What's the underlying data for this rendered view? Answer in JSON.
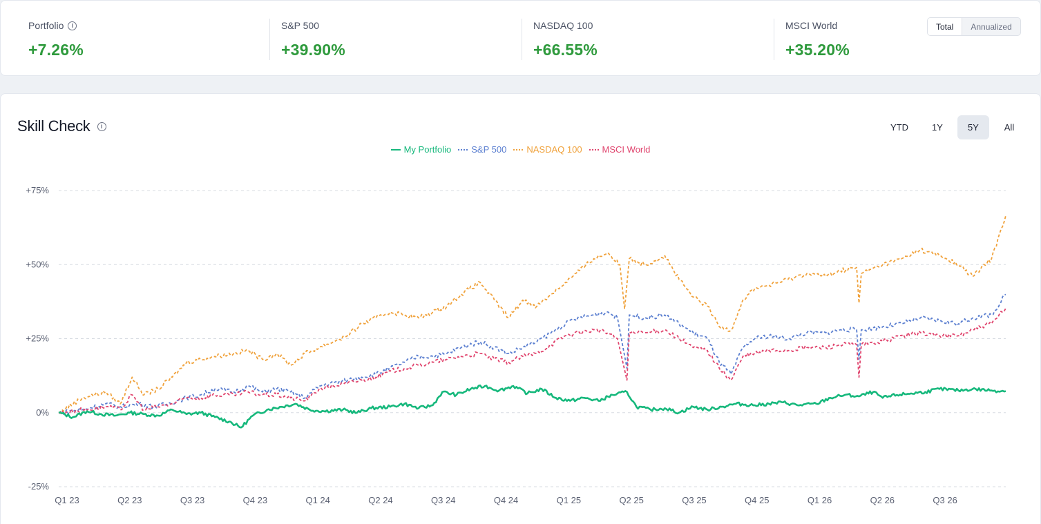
{
  "stats": [
    {
      "label": "Portfolio",
      "value": "+7.26%",
      "has_info": true
    },
    {
      "label": "S&P 500",
      "value": "+39.90%",
      "has_info": false
    },
    {
      "label": "NASDAQ 100",
      "value": "+66.55%",
      "has_info": false
    },
    {
      "label": "MSCI World",
      "value": "+35.20%",
      "has_info": false
    }
  ],
  "mode_toggle": {
    "options": [
      "Total",
      "Annualized"
    ],
    "selected": "Total"
  },
  "chart_card": {
    "title": "Skill Check",
    "ranges": [
      "YTD",
      "1Y",
      "5Y",
      "All"
    ],
    "selected_range": "5Y"
  },
  "chart_data": {
    "type": "line",
    "xlabel": "",
    "ylabel": "",
    "x_ticks": [
      "Q1 23",
      "Q2 23",
      "Q3 23",
      "Q4 23",
      "Q1 24",
      "Q2 24",
      "Q3 24",
      "Q4 24",
      "Q1 25",
      "Q2 25",
      "Q3 25",
      "Q4 25",
      "Q1 26",
      "Q2 26",
      "Q3 26"
    ],
    "y_ticks": [
      "+75%",
      "+50%",
      "+25%",
      "0%",
      "-25%"
    ],
    "y_tick_values": [
      75,
      50,
      25,
      0,
      -25
    ],
    "ylim": [
      -25,
      75
    ],
    "x_range_quarters": [
      0,
      15.1
    ],
    "grid": "horizontal dashed",
    "legend_position": "top-center",
    "series": [
      {
        "name": "My Portfolio",
        "color": "#16b87c",
        "style": "solid",
        "points": [
          [
            0,
            0
          ],
          [
            0.3,
            -1.5
          ],
          [
            0.6,
            0.5
          ],
          [
            0.9,
            -0.5
          ],
          [
            1.2,
            -1
          ],
          [
            1.5,
            0
          ],
          [
            1.8,
            -0.5
          ],
          [
            2.1,
            -1
          ],
          [
            2.4,
            1
          ],
          [
            2.7,
            -0.5
          ],
          [
            3.0,
            0
          ],
          [
            3.3,
            -1.5
          ],
          [
            3.6,
            -3
          ],
          [
            3.85,
            -5
          ],
          [
            4.1,
            -1
          ],
          [
            4.4,
            1
          ],
          [
            4.7,
            2
          ],
          [
            5.0,
            3
          ],
          [
            5.3,
            1
          ],
          [
            5.6,
            0.5
          ],
          [
            6.0,
            1
          ],
          [
            6.3,
            0
          ],
          [
            6.6,
            1.5
          ],
          [
            7.0,
            2
          ],
          [
            7.3,
            3
          ],
          [
            7.6,
            1.5
          ],
          [
            7.9,
            2.5
          ],
          [
            8.1,
            7
          ],
          [
            8.4,
            6
          ],
          [
            8.7,
            8
          ],
          [
            9.0,
            9
          ],
          [
            9.3,
            7.5
          ],
          [
            9.6,
            9
          ],
          [
            9.9,
            6.5
          ],
          [
            10.2,
            8
          ],
          [
            10.5,
            5
          ],
          [
            10.8,
            4
          ],
          [
            11.1,
            5
          ],
          [
            11.4,
            4
          ],
          [
            11.7,
            6
          ],
          [
            12.0,
            7
          ],
          [
            12.2,
            2
          ],
          [
            12.5,
            1
          ],
          [
            12.8,
            1.5
          ],
          [
            13.1,
            0
          ],
          [
            13.4,
            2
          ],
          [
            13.7,
            1
          ],
          [
            14.0,
            2
          ],
          [
            14.3,
            3
          ],
          [
            14.7,
            2.5
          ],
          [
            15.0,
            3
          ],
          [
            15.3,
            3.5
          ],
          [
            15.6,
            2.5
          ],
          [
            16.0,
            3
          ],
          [
            16.3,
            5
          ],
          [
            16.6,
            6
          ],
          [
            16.9,
            5.5
          ],
          [
            17.2,
            7
          ],
          [
            17.4,
            5
          ],
          [
            17.7,
            6
          ],
          [
            18.0,
            6.5
          ],
          [
            18.3,
            7
          ],
          [
            18.6,
            8
          ],
          [
            19.0,
            7.5
          ],
          [
            19.3,
            8
          ],
          [
            19.7,
            7.5
          ],
          [
            20.0,
            7.26
          ]
        ]
      },
      {
        "name": "S&P 500",
        "color": "#5b7fd0",
        "style": "dashed",
        "points": [
          [
            0,
            0
          ],
          [
            0.5,
            1
          ],
          [
            1.0,
            3
          ],
          [
            1.3,
            2
          ],
          [
            1.7,
            3
          ],
          [
            2.0,
            2
          ],
          [
            2.3,
            3
          ],
          [
            2.7,
            5
          ],
          [
            3.0,
            6
          ],
          [
            3.3,
            8
          ],
          [
            3.7,
            7
          ],
          [
            4.0,
            9
          ],
          [
            4.3,
            7
          ],
          [
            4.6,
            8
          ],
          [
            4.9,
            7
          ],
          [
            5.2,
            5
          ],
          [
            5.5,
            9
          ],
          [
            5.8,
            10
          ],
          [
            6.1,
            11
          ],
          [
            6.4,
            12
          ],
          [
            6.7,
            13
          ],
          [
            7.0,
            15
          ],
          [
            7.3,
            17
          ],
          [
            7.6,
            19
          ],
          [
            7.9,
            19
          ],
          [
            8.2,
            20
          ],
          [
            8.5,
            22
          ],
          [
            8.9,
            24
          ],
          [
            9.2,
            22
          ],
          [
            9.5,
            20
          ],
          [
            9.8,
            22
          ],
          [
            10.1,
            24
          ],
          [
            10.4,
            27
          ],
          [
            10.7,
            30
          ],
          [
            11.0,
            32
          ],
          [
            11.3,
            33
          ],
          [
            11.6,
            34
          ],
          [
            11.8,
            32
          ],
          [
            12.0,
            15
          ],
          [
            12.05,
            33
          ],
          [
            12.4,
            32
          ],
          [
            12.8,
            33
          ],
          [
            13.1,
            30
          ],
          [
            13.4,
            27
          ],
          [
            13.7,
            25
          ],
          [
            13.95,
            17
          ],
          [
            14.2,
            13
          ],
          [
            14.45,
            22
          ],
          [
            14.7,
            25
          ],
          [
            15.0,
            26
          ],
          [
            15.4,
            25
          ],
          [
            15.8,
            27
          ],
          [
            16.2,
            27
          ],
          [
            16.5,
            28
          ],
          [
            16.85,
            28
          ],
          [
            16.9,
            18
          ],
          [
            16.95,
            28
          ],
          [
            17.4,
            29
          ],
          [
            17.8,
            30
          ],
          [
            18.2,
            32
          ],
          [
            18.6,
            31
          ],
          [
            19.0,
            30
          ],
          [
            19.3,
            32
          ],
          [
            19.7,
            33
          ],
          [
            20.0,
            39.9
          ]
        ]
      },
      {
        "name": "NASDAQ 100",
        "color": "#f0a23c",
        "style": "dashed",
        "points": [
          [
            0,
            0
          ],
          [
            0.5,
            5
          ],
          [
            1.0,
            7
          ],
          [
            1.3,
            3
          ],
          [
            1.55,
            12
          ],
          [
            1.8,
            6
          ],
          [
            2.1,
            8
          ],
          [
            2.4,
            12
          ],
          [
            2.7,
            17
          ],
          [
            3.0,
            18
          ],
          [
            3.3,
            19
          ],
          [
            3.7,
            20
          ],
          [
            4.0,
            21
          ],
          [
            4.3,
            18
          ],
          [
            4.6,
            20
          ],
          [
            4.9,
            16
          ],
          [
            5.2,
            20
          ],
          [
            5.5,
            22
          ],
          [
            5.8,
            24
          ],
          [
            6.1,
            26
          ],
          [
            6.4,
            30
          ],
          [
            6.7,
            32
          ],
          [
            7.0,
            34
          ],
          [
            7.3,
            33
          ],
          [
            7.6,
            32
          ],
          [
            7.9,
            34
          ],
          [
            8.2,
            36
          ],
          [
            8.5,
            40
          ],
          [
            8.9,
            44
          ],
          [
            9.2,
            38
          ],
          [
            9.5,
            32
          ],
          [
            9.8,
            38
          ],
          [
            10.1,
            36
          ],
          [
            10.4,
            40
          ],
          [
            10.7,
            44
          ],
          [
            11.0,
            48
          ],
          [
            11.3,
            52
          ],
          [
            11.6,
            54
          ],
          [
            11.85,
            50
          ],
          [
            11.95,
            35
          ],
          [
            12.05,
            52
          ],
          [
            12.4,
            50
          ],
          [
            12.8,
            53
          ],
          [
            13.1,
            45
          ],
          [
            13.4,
            39
          ],
          [
            13.7,
            36
          ],
          [
            13.95,
            29
          ],
          [
            14.2,
            28
          ],
          [
            14.45,
            38
          ],
          [
            14.7,
            42
          ],
          [
            15.0,
            43
          ],
          [
            15.4,
            45
          ],
          [
            15.8,
            47
          ],
          [
            16.2,
            46
          ],
          [
            16.5,
            48
          ],
          [
            16.85,
            49
          ],
          [
            16.9,
            37
          ],
          [
            16.95,
            47
          ],
          [
            17.4,
            50
          ],
          [
            17.8,
            52
          ],
          [
            18.2,
            55
          ],
          [
            18.6,
            53
          ],
          [
            19.0,
            50
          ],
          [
            19.3,
            46
          ],
          [
            19.7,
            52
          ],
          [
            20.0,
            66.55
          ]
        ]
      },
      {
        "name": "MSCI World",
        "color": "#e0456e",
        "style": "dashed",
        "points": [
          [
            0,
            0
          ],
          [
            0.5,
            1
          ],
          [
            1.0,
            2
          ],
          [
            1.3,
            1
          ],
          [
            1.55,
            6
          ],
          [
            1.8,
            1
          ],
          [
            2.1,
            2
          ],
          [
            2.4,
            3
          ],
          [
            2.7,
            5
          ],
          [
            3.0,
            5
          ],
          [
            3.3,
            6
          ],
          [
            3.7,
            6
          ],
          [
            4.0,
            7
          ],
          [
            4.3,
            6
          ],
          [
            4.6,
            6
          ],
          [
            4.9,
            5
          ],
          [
            5.2,
            4
          ],
          [
            5.5,
            8
          ],
          [
            5.8,
            9
          ],
          [
            6.1,
            10
          ],
          [
            6.4,
            11
          ],
          [
            6.7,
            12
          ],
          [
            7.0,
            14
          ],
          [
            7.3,
            15
          ],
          [
            7.6,
            16
          ],
          [
            7.9,
            17
          ],
          [
            8.2,
            18
          ],
          [
            8.5,
            19
          ],
          [
            8.9,
            20
          ],
          [
            9.2,
            18
          ],
          [
            9.5,
            17
          ],
          [
            9.8,
            19
          ],
          [
            10.1,
            20
          ],
          [
            10.4,
            23
          ],
          [
            10.7,
            26
          ],
          [
            11.0,
            27
          ],
          [
            11.3,
            28
          ],
          [
            11.6,
            27
          ],
          [
            11.8,
            25
          ],
          [
            12.0,
            11
          ],
          [
            12.05,
            27
          ],
          [
            12.4,
            27
          ],
          [
            12.8,
            28
          ],
          [
            13.1,
            25
          ],
          [
            13.4,
            22
          ],
          [
            13.7,
            21
          ],
          [
            13.95,
            15
          ],
          [
            14.2,
            11
          ],
          [
            14.45,
            19
          ],
          [
            14.7,
            20
          ],
          [
            15.0,
            21
          ],
          [
            15.4,
            21
          ],
          [
            15.8,
            22
          ],
          [
            16.2,
            22
          ],
          [
            16.5,
            23
          ],
          [
            16.85,
            23
          ],
          [
            16.9,
            12
          ],
          [
            16.95,
            23
          ],
          [
            17.4,
            24
          ],
          [
            17.8,
            26
          ],
          [
            18.2,
            27
          ],
          [
            18.6,
            26
          ],
          [
            19.0,
            26
          ],
          [
            19.3,
            28
          ],
          [
            19.7,
            30
          ],
          [
            20.0,
            35.2
          ]
        ]
      }
    ]
  }
}
